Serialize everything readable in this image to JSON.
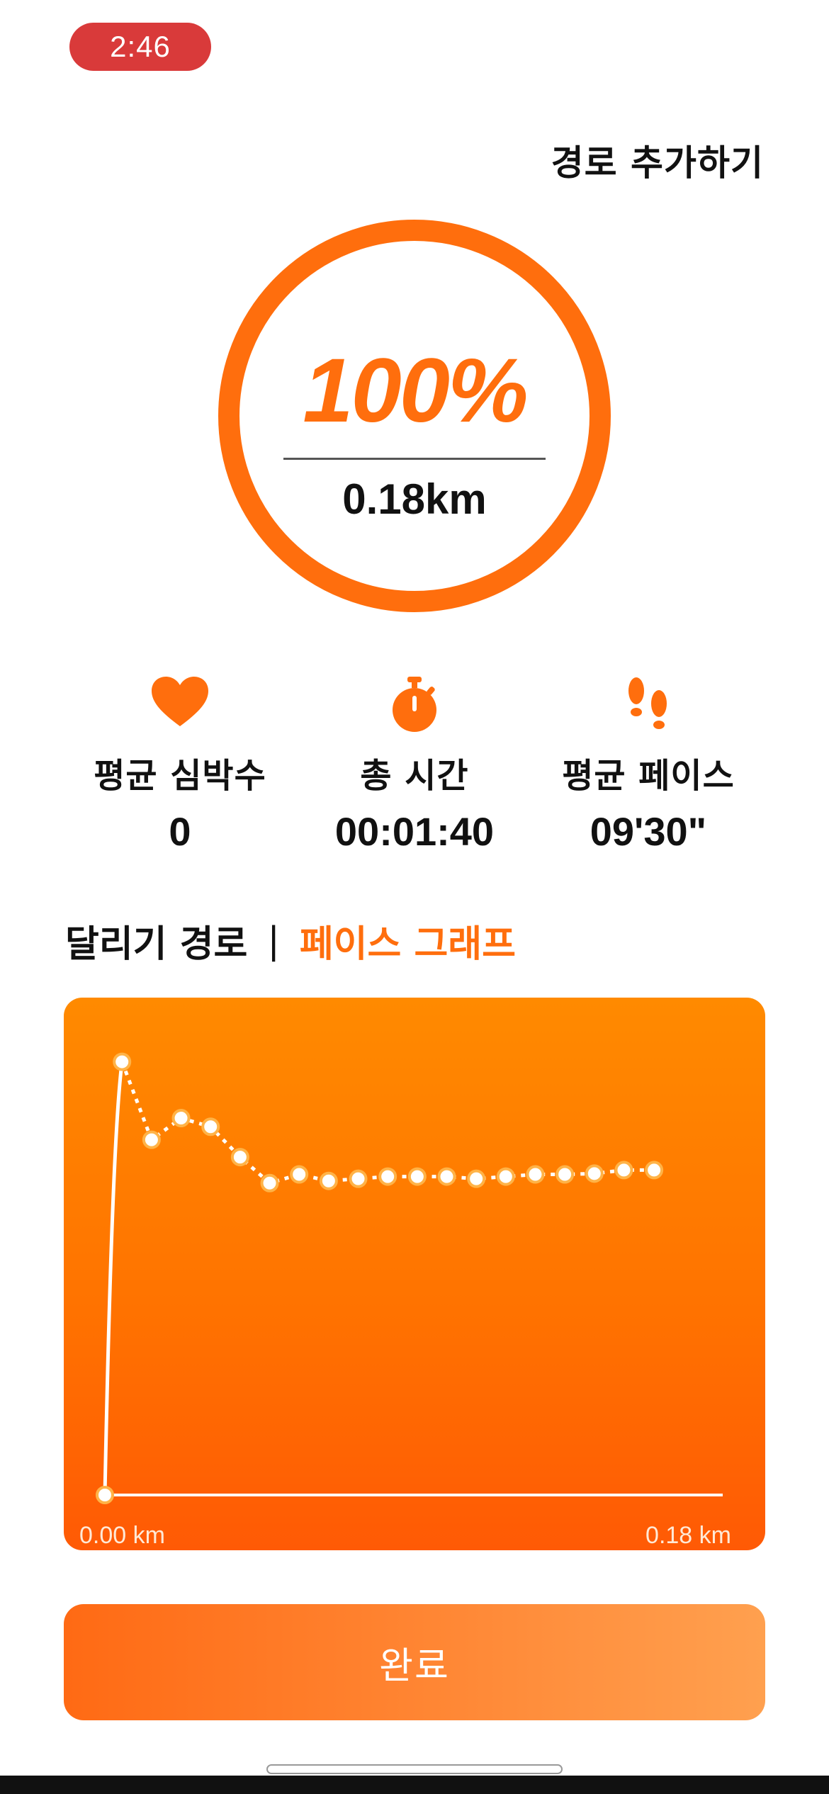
{
  "status_bar": {
    "time": "2:46"
  },
  "header": {
    "add_route_label": "경로 추가하기"
  },
  "progress": {
    "percent_label": "100%",
    "percent_value": 100,
    "distance": "0.18km"
  },
  "stats": [
    {
      "icon": "heart-icon",
      "label": "평균 심박수",
      "value": "0"
    },
    {
      "icon": "stopwatch-icon",
      "label": "총 시간",
      "value": "00:01:40"
    },
    {
      "icon": "footprints-icon",
      "label": "평균 페이스",
      "value": "09'30\""
    }
  ],
  "tabs": {
    "route": "달리기 경로",
    "separator": "|",
    "pace_graph": "페이스 그래프",
    "active": "pace_graph"
  },
  "colors": {
    "accent": "#ff6e0d",
    "chart_top": "#ff8a00",
    "chart_bottom": "#ff5a05",
    "status_pill": "#d93a3a"
  },
  "chart_data": {
    "type": "line",
    "x_tick_labels": [
      "0.00  km",
      "0.18  km"
    ],
    "xlim": [
      0.0,
      0.18
    ],
    "x": [
      0.0,
      0.005,
      0.0136,
      0.0222,
      0.0308,
      0.0394,
      0.048,
      0.0566,
      0.0652,
      0.0738,
      0.0824,
      0.091,
      0.0996,
      0.1082,
      0.1168,
      0.1254,
      0.134,
      0.1426,
      0.1512,
      0.16
    ],
    "y": [
      0.0,
      1.0,
      0.82,
      0.87,
      0.85,
      0.78,
      0.72,
      0.74,
      0.725,
      0.73,
      0.735,
      0.735,
      0.735,
      0.73,
      0.735,
      0.74,
      0.74,
      0.742,
      0.75,
      0.75
    ],
    "ylim": [
      0,
      1.05
    ],
    "grid": false
  },
  "footer": {
    "done_label": "완료"
  }
}
